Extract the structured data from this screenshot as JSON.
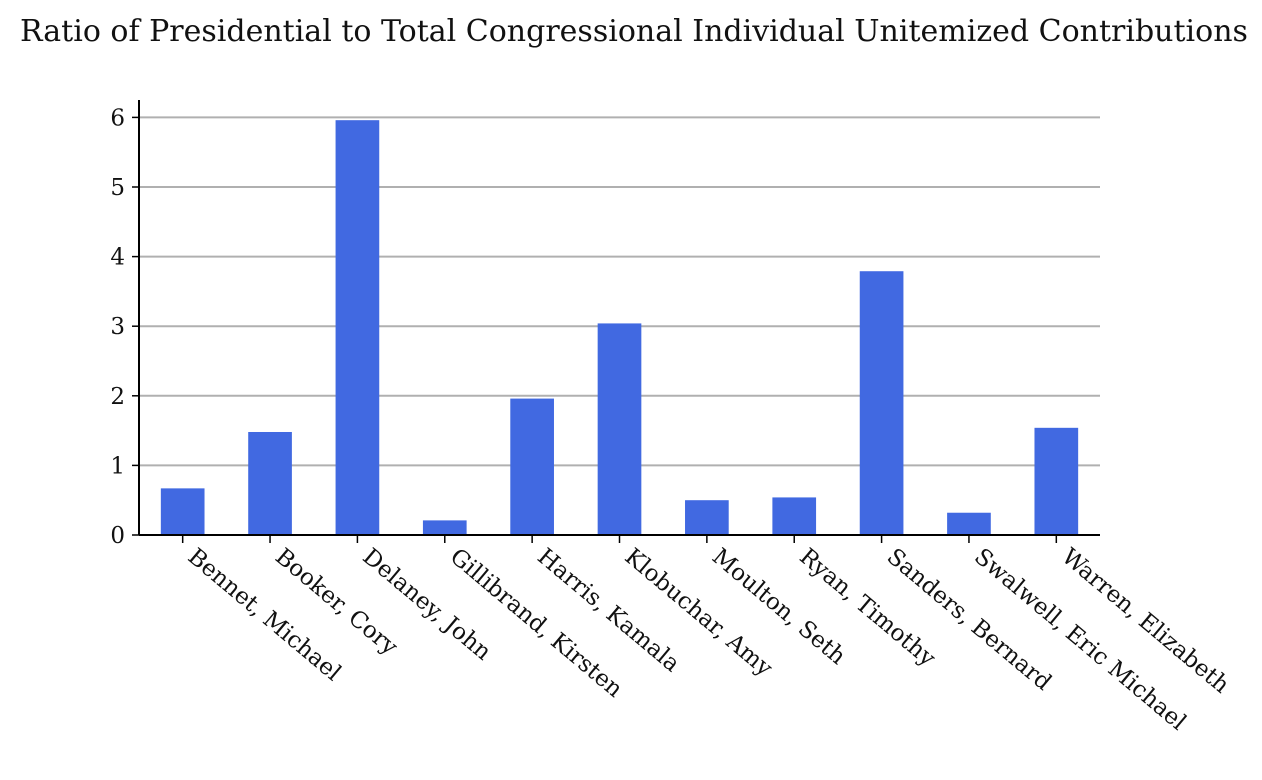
{
  "chart_data": {
    "type": "bar",
    "title": "Ratio of Presidential to Total Congressional Individual Unitemized Contributions",
    "xlabel": "",
    "ylabel": "",
    "categories": [
      "Bennet, Michael",
      "Booker, Cory",
      "Delaney, John",
      "Gillibrand, Kirsten",
      "Harris, Kamala",
      "Klobuchar, Amy",
      "Moulton, Seth",
      "Ryan, Timothy",
      "Sanders, Bernard",
      "Swalwell, Eric Michael",
      "Warren, Elizabeth"
    ],
    "values": [
      0.67,
      1.48,
      5.96,
      0.21,
      1.96,
      3.04,
      0.5,
      0.54,
      3.79,
      0.32,
      1.54
    ],
    "ylim": [
      0,
      6.25
    ],
    "yticks": [
      0,
      1,
      2,
      3,
      4,
      5,
      6
    ],
    "grid": true,
    "legend": "none",
    "bar_color": "#4169e1",
    "grid_color": "#b0b0b0",
    "axis_color": "#000000"
  }
}
